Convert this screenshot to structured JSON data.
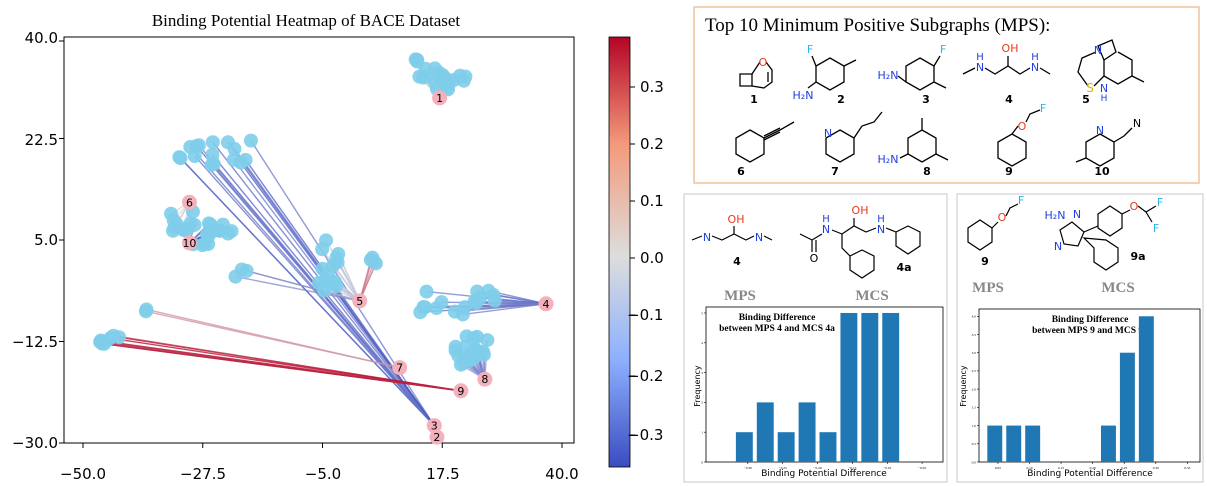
{
  "heatmap": {
    "title": "Binding Potential Heatmap of BACE Dataset",
    "x_ticks": [
      "−50.0",
      "−27.5",
      "−5.0",
      "17.5",
      "40.0"
    ],
    "y_ticks": [
      "40.0",
      "22.5",
      "5.0",
      "−12.5",
      "−30.0"
    ],
    "colorbar_ticks": [
      "0.3",
      "0.2",
      "0.1",
      "0.0",
      "−0.1",
      "−0.2",
      "−0.3"
    ],
    "colors": {
      "positive": "#b40426",
      "neutral": "#dddddd",
      "negative": "#3b4cc0",
      "point": "#7ecdea",
      "label_marker": "#f4b0bc"
    }
  },
  "mps_panel": {
    "title": "Top 10 Minimum Positive Subgraphs (MPS):",
    "molecules": [
      {
        "label": "1",
        "atoms": [
          "O"
        ]
      },
      {
        "label": "2",
        "atoms": [
          "F",
          "H₂N"
        ]
      },
      {
        "label": "3",
        "atoms": [
          "F",
          "H₂N"
        ]
      },
      {
        "label": "4",
        "atoms": [
          "OH",
          "H",
          "N",
          "H",
          "N"
        ]
      },
      {
        "label": "5",
        "atoms": [
          "N",
          "S",
          "N",
          "H"
        ]
      },
      {
        "label": "6",
        "atoms": []
      },
      {
        "label": "7",
        "atoms": [
          "N"
        ]
      },
      {
        "label": "8",
        "atoms": [
          "H₂N"
        ]
      },
      {
        "label": "9",
        "atoms": [
          "O",
          "F"
        ]
      },
      {
        "label": "10",
        "atoms": [
          "N",
          "N"
        ]
      }
    ]
  },
  "comparisons": [
    {
      "mps_label": "4",
      "mcs_label": "4a",
      "mps_caption": "MPS",
      "mcs_caption": "MCS",
      "chart_title_line1": "Binding Difference",
      "chart_title_line2": "between MPS 4 and MCS 4a",
      "xlabel": "Binding Potential Difference",
      "ylabel": "Frequency"
    },
    {
      "mps_label": "9",
      "mcs_label": "9a",
      "mps_caption": "MPS",
      "mcs_caption": "MCS",
      "chart_title_line1": "Binding Difference",
      "chart_title_line2": "between MPS 9 and MCS 9a",
      "xlabel": "Binding Potential Difference",
      "ylabel": "Frequency"
    }
  ],
  "chart_data": [
    {
      "type": "scatter",
      "title": "Binding Potential Heatmap of BACE Dataset",
      "xlim": [
        -50,
        40
      ],
      "ylim": [
        -30,
        40
      ],
      "colorbar_range": [
        -0.35,
        0.37
      ],
      "grid": false,
      "labeled_points": [
        {
          "label": "1",
          "x": 17.0,
          "y": 29.5
        },
        {
          "label": "2",
          "x": 16.5,
          "y": -29.0
        },
        {
          "label": "3",
          "x": 16.0,
          "y": -27.0
        },
        {
          "label": "4",
          "x": 37.0,
          "y": -6.0
        },
        {
          "label": "5",
          "x": 2.0,
          "y": -5.5
        },
        {
          "label": "6",
          "x": -30.0,
          "y": 11.5
        },
        {
          "label": "7",
          "x": 9.5,
          "y": -17.0
        },
        {
          "label": "8",
          "x": 25.5,
          "y": -19.0
        },
        {
          "label": "9",
          "x": 21.0,
          "y": -21.0
        },
        {
          "label": "10",
          "x": -30.0,
          "y": 4.5
        }
      ]
    },
    {
      "type": "bar",
      "title": "Binding Difference between MPS 4 and MCS 4a",
      "xlabel": "Binding Potential Difference",
      "ylabel": "Frequency",
      "x_ticks": [
        -0.3,
        -0.25,
        -0.2,
        -0.15,
        -0.1,
        -0.05
      ],
      "x_tick_labels": [
        "−0.30",
        "−0.25",
        "−0.20",
        "−0.15",
        "−0.10",
        "−0.05"
      ],
      "xlim": [
        -0.36,
        -0.02
      ],
      "ylim": [
        0,
        5.2
      ],
      "y_ticks": [
        0,
        1,
        2,
        3,
        4,
        5
      ],
      "bin_left": [
        -0.35,
        -0.32,
        -0.29,
        -0.26,
        -0.23,
        -0.2,
        -0.17,
        -0.14,
        -0.11,
        -0.08
      ],
      "bin_width": 0.03,
      "values": [
        0,
        1,
        2,
        1,
        2,
        1,
        5,
        5,
        5,
        0
      ],
      "color": "#1f77b4"
    },
    {
      "type": "bar",
      "title": "Binding Difference between MPS 9 and MCS 9a",
      "xlabel": "Binding Potential Difference",
      "ylabel": "Frequency",
      "x_ticks": [
        0.05,
        0.1,
        0.15,
        0.2,
        0.25,
        0.3,
        0.35
      ],
      "x_tick_labels": [
        "0.05",
        "0.10",
        "0.15",
        "0.20",
        "0.25",
        "0.30",
        "0.35"
      ],
      "xlim": [
        0.02,
        0.37
      ],
      "ylim": [
        0,
        4.2
      ],
      "y_ticks": [
        0,
        0.5,
        1,
        1.5,
        2,
        2.5,
        3,
        3.5,
        4
      ],
      "y_tick_labels": [
        "0.0",
        "0.5",
        "1.0",
        "1.5",
        "2.0",
        "2.5",
        "3.0",
        "3.5",
        "4.0"
      ],
      "bin_left": [
        0.03,
        0.06,
        0.09,
        0.12,
        0.15,
        0.18,
        0.21,
        0.24,
        0.27,
        0.3,
        0.33
      ],
      "bin_width": 0.03,
      "values": [
        1,
        1,
        1,
        0,
        0,
        0,
        1,
        3,
        4,
        0,
        0
      ],
      "color": "#1f77b4"
    }
  ]
}
